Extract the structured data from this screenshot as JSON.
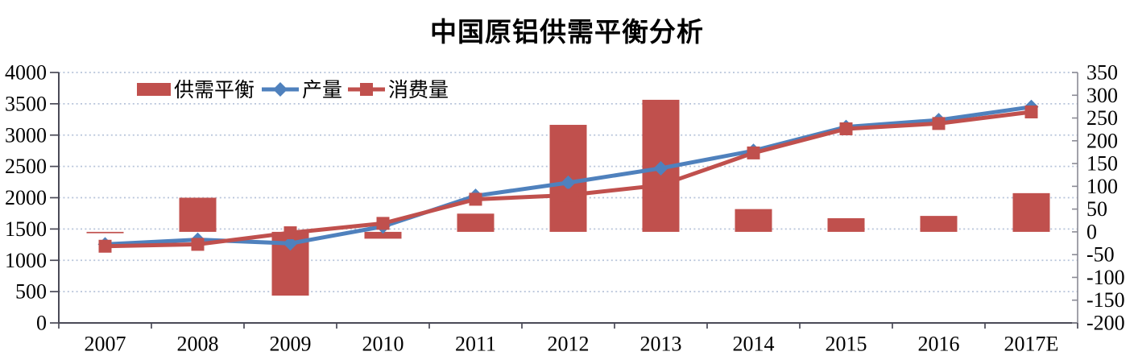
{
  "chart_data": {
    "type": "combo",
    "title": "中国原铝供需平衡分析",
    "categories": [
      "2007",
      "2008",
      "2009",
      "2010",
      "2011",
      "2012",
      "2013",
      "2014",
      "2015",
      "2016",
      "2017E"
    ],
    "left_axis": {
      "min": 0,
      "max": 4000,
      "step": 500,
      "ticks": [
        "0",
        "500",
        "1000",
        "1500",
        "2000",
        "2500",
        "3000",
        "3500",
        "4000"
      ]
    },
    "right_axis": {
      "min": -200,
      "max": 350,
      "step": 50,
      "ticks": [
        "-200",
        "-150",
        "-100",
        "-50",
        "0",
        "50",
        "100",
        "150",
        "200",
        "250",
        "300",
        "350"
      ]
    },
    "series": [
      {
        "name": "供需平衡",
        "type": "bar",
        "axis": "right",
        "color": "#c0504d",
        "values": [
          -3,
          75,
          -140,
          -15,
          40,
          235,
          290,
          50,
          30,
          35,
          85
        ]
      },
      {
        "name": "产量",
        "type": "line",
        "marker": "diamond",
        "axis": "left",
        "color": "#4f81bd",
        "values": [
          1255,
          1330,
          1270,
          1540,
          2030,
          2240,
          2470,
          2750,
          3130,
          3240,
          3450
        ]
      },
      {
        "name": "消费量",
        "type": "line",
        "marker": "square",
        "axis": "left",
        "color": "#c0504d",
        "values": [
          1225,
          1255,
          1440,
          1590,
          1975,
          2040,
          2200,
          2715,
          3100,
          3185,
          3370
        ]
      }
    ],
    "legend_position": "top-inside-left",
    "grid": {
      "horizontal": true,
      "style": "dotted",
      "color": "#b7c4da"
    },
    "axis_color_left": "#4a4a57",
    "axis_color_right": "#8b8b95",
    "background": "#ffffff"
  }
}
